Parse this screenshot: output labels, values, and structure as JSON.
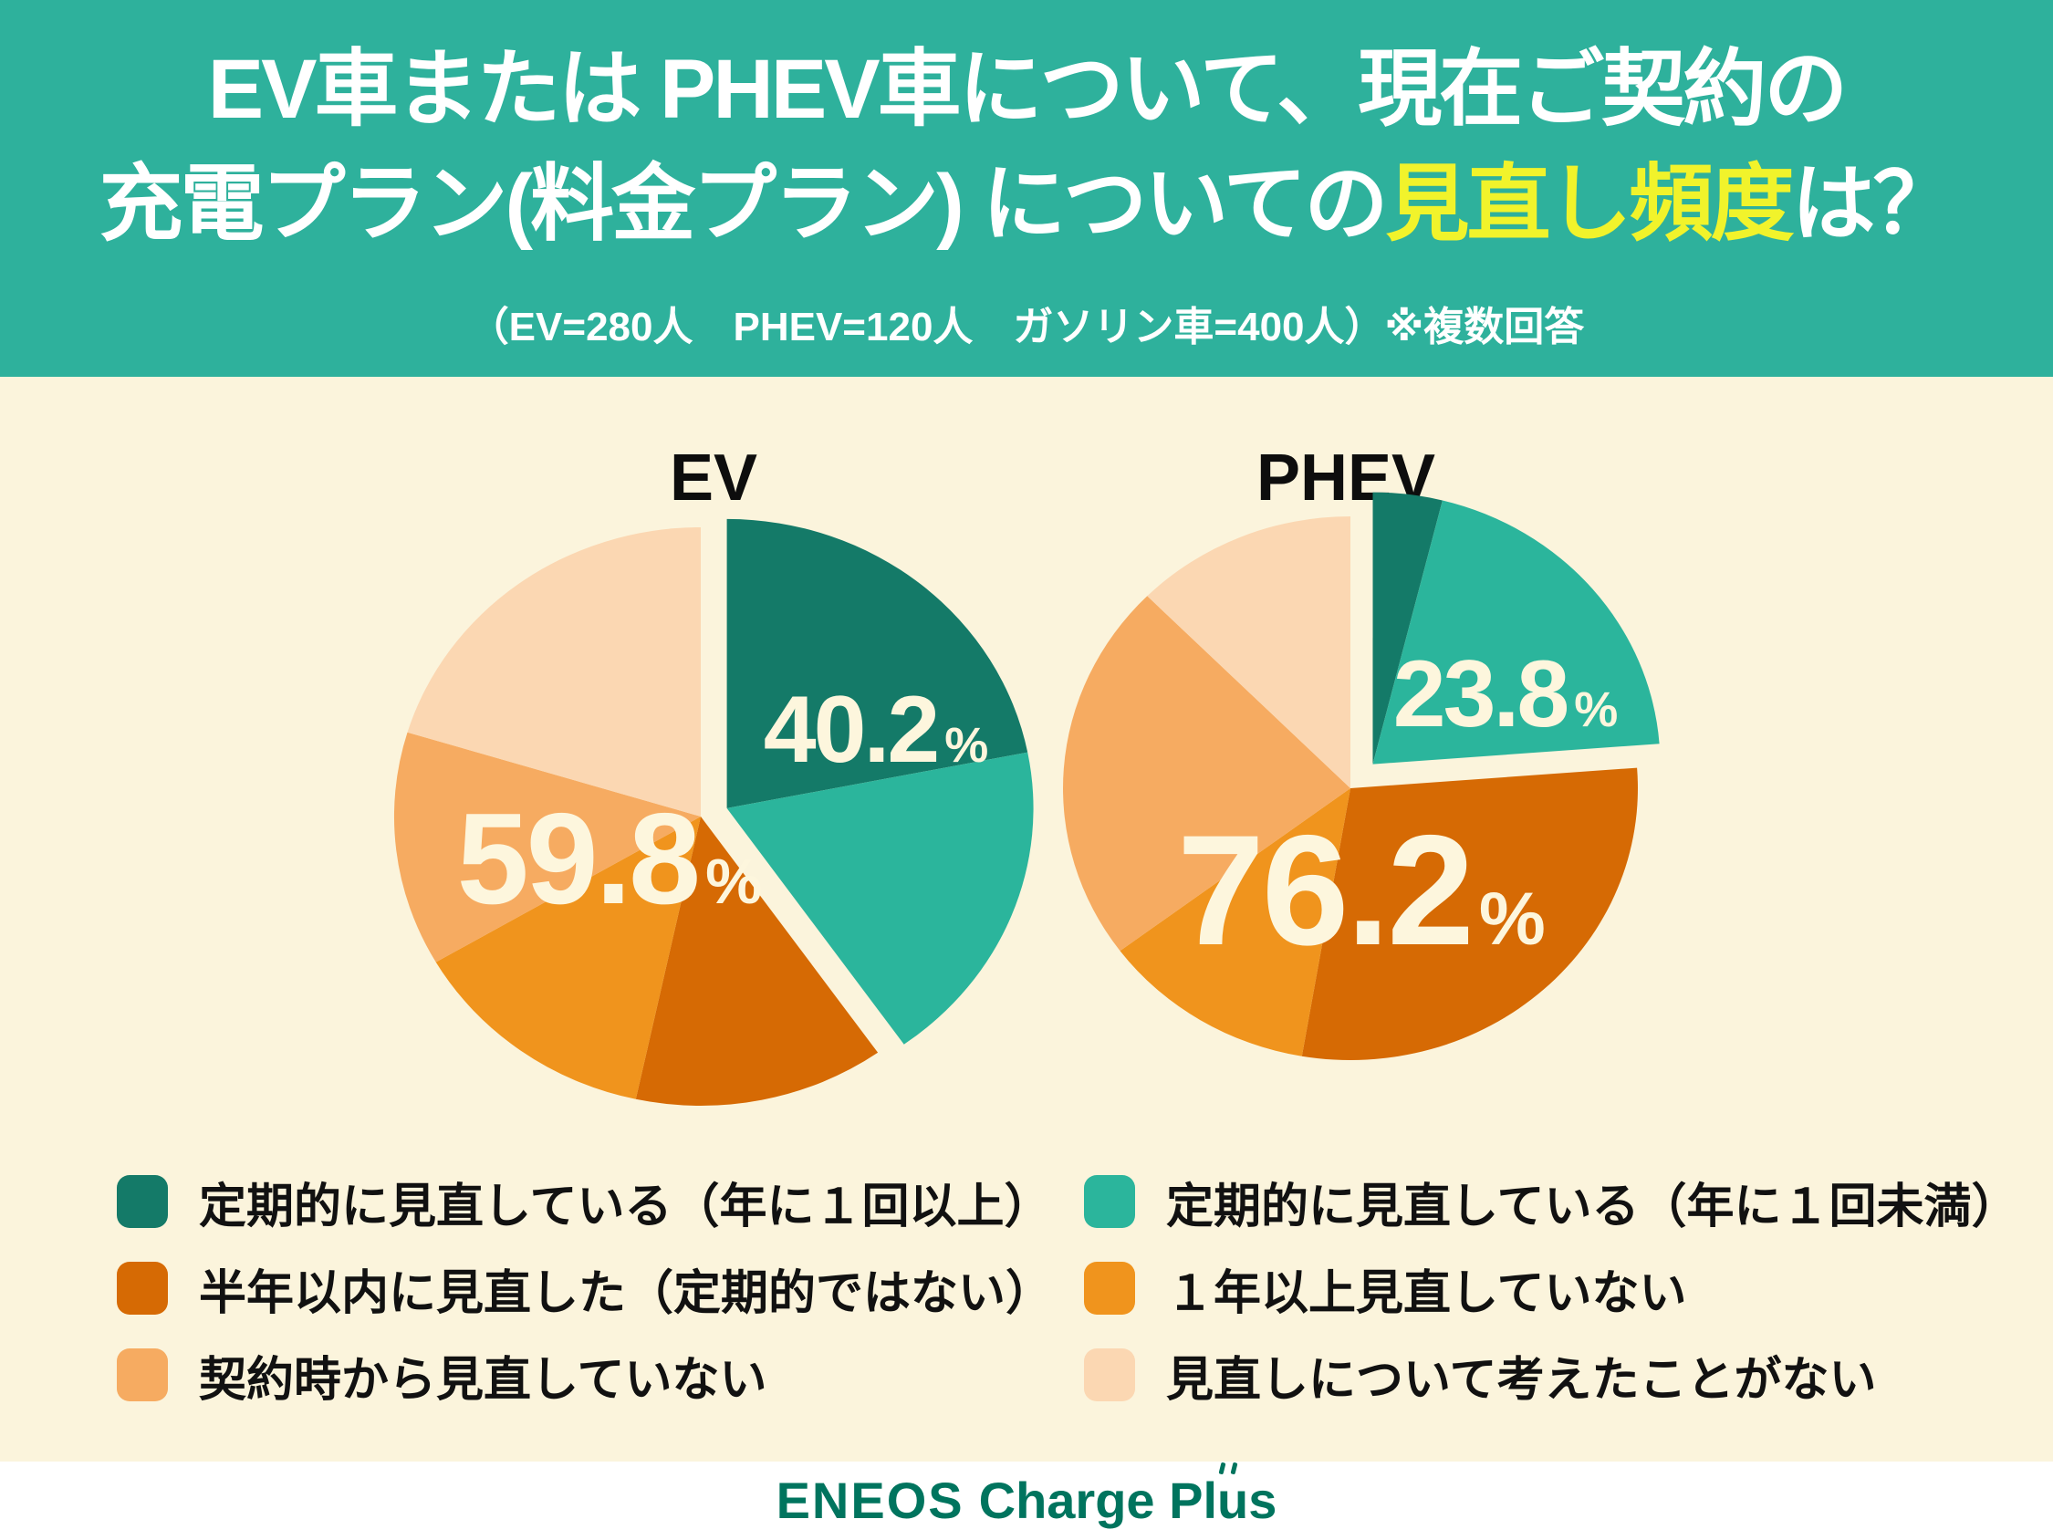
{
  "header": {
    "bg_color": "#2eb19c",
    "title_line1": "EV車または PHEV車について、現在ご契約の",
    "title_line2_pre": "充電プラン(料金プラン) についての",
    "title_line2_highlight": "見直し頻度",
    "title_line2_post": "は？",
    "highlight_color": "#f1f32b",
    "subtitle": "（EV=280人　PHEV=120人　ガソリン車=400人）※複数回答"
  },
  "chart_data": [
    {
      "type": "pie",
      "title": "EV",
      "n_label": "EV=280人",
      "units": "%",
      "legend_position": "bottom",
      "labeled_group_totals": {
        "review_group_pct": 40.2,
        "no_review_group_pct": 59.8
      },
      "group_labels": [
        {
          "value": "40.2",
          "unit": "%"
        },
        {
          "value": "59.8",
          "unit": "%"
        }
      ],
      "sub_slice_values_estimated": true,
      "slices": [
        {
          "label": "定期的に見直している（年に１回以上）",
          "pct": 21.9,
          "color": "#147a68",
          "group": "review"
        },
        {
          "label": "定期的に見直している（年に１回未満）",
          "pct": 18.3,
          "color": "#2bb59c",
          "group": "review"
        },
        {
          "label": "半年以内に見直した（定期的ではない）",
          "pct": 13.2,
          "color": "#d66a04",
          "group": "no-review"
        },
        {
          "label": "１年以上見直していない",
          "pct": 13.2,
          "color": "#f0941d",
          "group": "no-review"
        },
        {
          "label": "契約時から見直していない",
          "pct": 13.1,
          "color": "#f6ab61",
          "group": "no-review"
        },
        {
          "label": "見直しについて考えたことがない",
          "pct": 20.3,
          "color": "#fbd7b2",
          "group": "no-review"
        }
      ]
    },
    {
      "type": "pie",
      "title": "PHEV",
      "n_label": "PHEV=120人",
      "units": "%",
      "legend_position": "bottom",
      "labeled_group_totals": {
        "review_group_pct": 23.8,
        "no_review_group_pct": 76.2
      },
      "group_labels": [
        {
          "value": "23.8",
          "unit": "%"
        },
        {
          "value": "76.2",
          "unit": "%"
        }
      ],
      "sub_slice_values_estimated": true,
      "slices": [
        {
          "label": "定期的に見直している（年に１回以上）",
          "pct": 3.9,
          "color": "#147a68",
          "group": "review"
        },
        {
          "label": "定期的に見直している（年に１回未満）",
          "pct": 19.9,
          "color": "#2bb59c",
          "group": "review"
        },
        {
          "label": "半年以内に見直した（定期的ではない）",
          "pct": 28.9,
          "color": "#d66a04",
          "group": "no-review"
        },
        {
          "label": "１年以上見直していない",
          "pct": 12.1,
          "color": "#f0941d",
          "group": "no-review"
        },
        {
          "label": "契約時から見直していない",
          "pct": 22.7,
          "color": "#f6ab61",
          "group": "no-review"
        },
        {
          "label": "見直しについて考えたことがない",
          "pct": 12.5,
          "color": "#fbd7b2",
          "group": "no-review"
        }
      ]
    }
  ],
  "legend": {
    "left": [
      {
        "color": "#147a68",
        "label": "定期的に見直している（年に１回以上）"
      },
      {
        "color": "#d66a04",
        "label": "半年以内に見直した（定期的ではない）"
      },
      {
        "color": "#f6ab61",
        "label": "契約時から見直していない"
      }
    ],
    "right": [
      {
        "color": "#2bb59c",
        "label": "定期的に見直している（年に１回未満）"
      },
      {
        "color": "#f0941d",
        "label": "１年以上見直していない"
      },
      {
        "color": "#fbd7b2",
        "label": "見直しについて考えたことがない"
      }
    ]
  },
  "footer": {
    "brand": "ENEOS",
    "product_pre": "Charge Pl",
    "product_u": "u",
    "product_post": "s",
    "color": "#00745e"
  },
  "style": {
    "background": "#fbf4dc",
    "pie_label_color": "#fdf6dd"
  }
}
